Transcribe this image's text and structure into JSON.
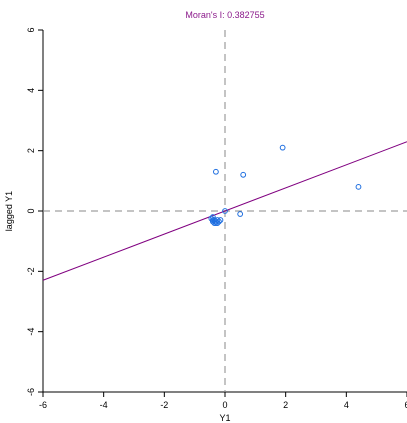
{
  "chart_data": {
    "type": "scatter",
    "title": "Moran's I: 0.382755",
    "xlabel": "Y1",
    "ylabel": "lagged Y1",
    "xlim": [
      -6,
      6
    ],
    "ylim": [
      -6,
      6
    ],
    "x_ticks": [
      -6,
      -4,
      -2,
      0,
      2,
      4,
      6
    ],
    "y_ticks": [
      -6,
      -4,
      -2,
      0,
      2,
      4,
      6
    ],
    "x_tick_labels": [
      "-6",
      "-4",
      "-2",
      "0",
      "2",
      "4",
      "6"
    ],
    "y_tick_labels": [
      "-6",
      "-4",
      "-2",
      "0",
      "2",
      "4",
      "6"
    ],
    "points": [
      {
        "x": -0.3,
        "y": 1.3
      },
      {
        "x": 0.6,
        "y": 1.2
      },
      {
        "x": 1.9,
        "y": 2.1
      },
      {
        "x": 4.4,
        "y": 0.8
      },
      {
        "x": 0.0,
        "y": 0.0
      },
      {
        "x": 0.5,
        "y": -0.1
      },
      {
        "x": -0.4,
        "y": -0.2
      },
      {
        "x": -0.45,
        "y": -0.25
      },
      {
        "x": -0.35,
        "y": -0.3
      },
      {
        "x": -0.3,
        "y": -0.35
      },
      {
        "x": -0.4,
        "y": -0.35
      },
      {
        "x": -0.25,
        "y": -0.3
      },
      {
        "x": -0.2,
        "y": -0.35
      },
      {
        "x": -0.3,
        "y": -0.4
      },
      {
        "x": -0.15,
        "y": -0.3
      },
      {
        "x": -0.35,
        "y": -0.4
      },
      {
        "x": -0.25,
        "y": -0.4
      },
      {
        "x": -0.4,
        "y": -0.3
      }
    ],
    "regression_line": {
      "slope": 0.382755,
      "intercept": 0.0
    },
    "reference_lines": {
      "x": 0,
      "y": 0,
      "style": "dashed"
    },
    "grid": false,
    "legend": "none",
    "colors": {
      "title": "#8b1a8b",
      "points": "#1f6fe0",
      "regression": "#800080",
      "reference": "#888888",
      "axis": "#000000"
    }
  }
}
